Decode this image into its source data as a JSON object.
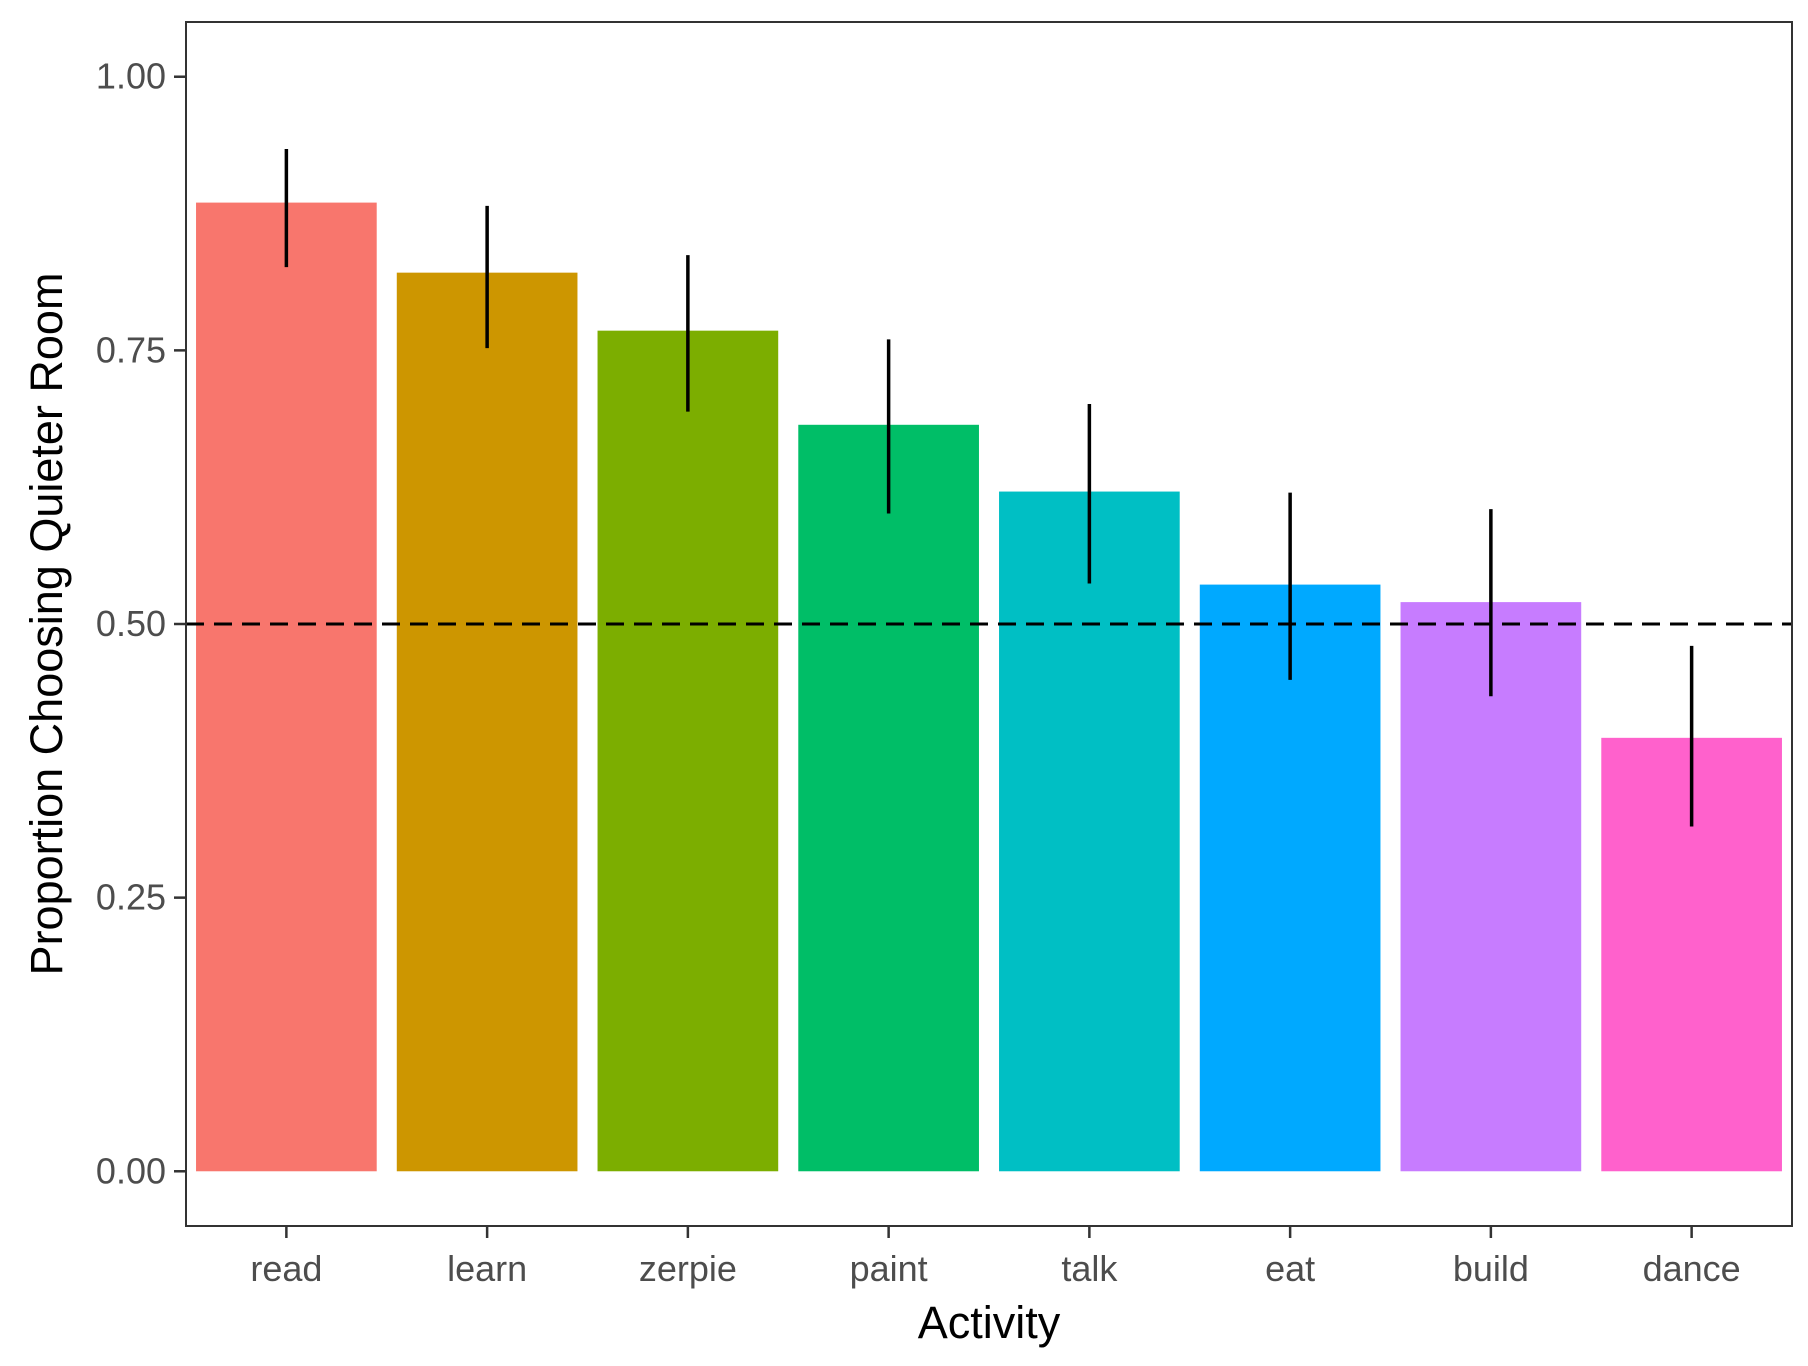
{
  "chart_data": {
    "type": "bar",
    "title": "",
    "xlabel": "Activity",
    "ylabel": "Proportion Choosing Quieter Room",
    "categories": [
      "read",
      "learn",
      "zerpie",
      "paint",
      "talk",
      "eat",
      "build",
      "dance"
    ],
    "values": [
      0.885,
      0.821,
      0.768,
      0.682,
      0.621,
      0.536,
      0.52,
      0.396
    ],
    "error_low": [
      0.826,
      0.752,
      0.694,
      0.601,
      0.537,
      0.449,
      0.434,
      0.315
    ],
    "error_high": [
      0.934,
      0.882,
      0.837,
      0.76,
      0.701,
      0.62,
      0.605,
      0.48
    ],
    "colors": [
      "#F8766D",
      "#CD9600",
      "#7CAE00",
      "#00BE67",
      "#00BFC4",
      "#00A9FF",
      "#C77CFF",
      "#FF61CC"
    ],
    "reference_line": {
      "value": 0.5,
      "style": "dashed"
    },
    "ylim": [
      -0.05,
      1.05
    ],
    "yticks": [
      0.0,
      0.25,
      0.5,
      0.75,
      1.0
    ],
    "ytick_labels": [
      "0.00",
      "0.25",
      "0.50",
      "0.75",
      "1.00"
    ],
    "grid": false,
    "legend": "none"
  }
}
